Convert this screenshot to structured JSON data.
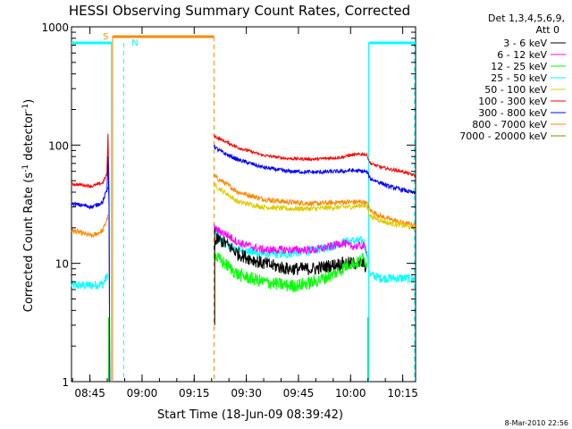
{
  "chart_data": {
    "type": "line",
    "title": "HESSI Observing Summary Count Rates, Corrected",
    "xlabel": "Start Time (18-Jun-09 08:39:42)",
    "ylabel_main": "Corrected Count Rate (s",
    "ylabel_sup1": "-1",
    "ylabel_mid": " detector",
    "ylabel_sup2": "-1",
    "ylabel_end": ")",
    "yscale": "log",
    "ylim": [
      1,
      1000
    ],
    "xlim_minutes": [
      0,
      99
    ],
    "x_ticks": [
      {
        "minutes": 5.3,
        "label": "08:45"
      },
      {
        "minutes": 20.3,
        "label": "09:00"
      },
      {
        "minutes": 35.3,
        "label": "09:15"
      },
      {
        "minutes": 50.3,
        "label": "09:30"
      },
      {
        "minutes": 65.3,
        "label": "09:45"
      },
      {
        "minutes": 80.3,
        "label": "10:00"
      },
      {
        "minutes": 95.3,
        "label": "10:15"
      }
    ],
    "y_ticks": [
      {
        "value": 1,
        "label": "1"
      },
      {
        "value": 10,
        "label": "10"
      },
      {
        "value": 100,
        "label": "100"
      },
      {
        "value": 1000,
        "label": "1000"
      }
    ],
    "legend_header": [
      "Det 1,3,4,5,6,9,",
      "Att 0"
    ],
    "legend_placement": "right",
    "series": [
      {
        "name": "3 - 6 keV",
        "color": "#000000",
        "x": [
          0,
          3,
          6,
          9,
          10.5,
          11,
          12,
          40,
          41,
          42,
          44,
          48,
          55,
          62,
          70,
          78,
          80,
          84,
          85,
          86,
          89,
          91,
          95,
          99
        ],
        "y": [
          null,
          null,
          null,
          null,
          null,
          null,
          null,
          null,
          14,
          16,
          15,
          12,
          10,
          9,
          9,
          10,
          10,
          10,
          9,
          null,
          null,
          null,
          null,
          null
        ]
      },
      {
        "name": "6 - 12 keV",
        "color": "#ff00ff",
        "x": [
          0,
          3,
          6,
          9,
          10.5,
          12,
          40,
          41,
          42,
          44,
          48,
          55,
          62,
          70,
          75,
          78,
          80,
          84,
          85,
          86,
          89,
          91,
          95,
          99
        ],
        "y": [
          null,
          null,
          null,
          null,
          null,
          null,
          null,
          20,
          19,
          18,
          15,
          13,
          13,
          13,
          14,
          15,
          14,
          14,
          13,
          null,
          null,
          null,
          null,
          null
        ]
      },
      {
        "name": "12 - 25 keV",
        "color": "#00ff00",
        "x": [
          0,
          3,
          6,
          9,
          10.5,
          12,
          40,
          41,
          42,
          44,
          48,
          55,
          62,
          65,
          70,
          75,
          78,
          80,
          82,
          84,
          85,
          86,
          89,
          91,
          95,
          99
        ],
        "y": [
          null,
          null,
          null,
          null,
          null,
          null,
          null,
          12,
          11,
          10,
          8,
          7,
          6.5,
          6.5,
          7,
          8,
          9,
          10,
          10,
          11,
          10,
          null,
          null,
          null,
          null,
          null
        ]
      },
      {
        "name": "25 - 50 keV",
        "color": "#00ffff",
        "x": [
          0,
          3,
          6,
          9,
          10.5,
          11,
          12,
          40,
          41,
          42,
          44,
          48,
          55,
          62,
          70,
          75,
          78,
          80,
          84,
          85,
          86,
          89,
          91,
          95,
          99
        ],
        "y": [
          6.5,
          6.5,
          6.5,
          6.7,
          8,
          null,
          null,
          null,
          19,
          17,
          15,
          13,
          12,
          12,
          13,
          14,
          15,
          15.5,
          15.5,
          12,
          8,
          7.5,
          7.5,
          7.5,
          7.3
        ]
      },
      {
        "name": "50 - 100 keV",
        "color": "#ddcc00",
        "x": [
          0,
          3,
          6,
          9,
          10.5,
          11,
          12,
          40,
          41,
          42,
          44,
          48,
          55,
          62,
          70,
          78,
          80,
          84,
          85,
          86,
          89,
          91,
          95,
          99
        ],
        "y": [
          null,
          null,
          null,
          null,
          null,
          null,
          null,
          null,
          46,
          44,
          40,
          33,
          30,
          29,
          29,
          30,
          30,
          31,
          30,
          25,
          23,
          22,
          21,
          20
        ]
      },
      {
        "name": "100 - 300 keV",
        "color": "#ff0000",
        "x": [
          0,
          3,
          6,
          9,
          10.5,
          11,
          12,
          40,
          41,
          42,
          44,
          48,
          55,
          62,
          70,
          78,
          80,
          84,
          85,
          86,
          89,
          91,
          95,
          99
        ],
        "y": [
          47,
          46,
          45,
          48,
          60,
          null,
          null,
          null,
          120,
          115,
          108,
          95,
          82,
          77,
          76,
          79,
          82,
          84,
          82,
          70,
          65,
          63,
          60,
          55
        ]
      },
      {
        "name": "300 - 800 keV",
        "color": "#0000ff",
        "x": [
          0,
          3,
          6,
          9,
          10.5,
          11,
          12,
          40,
          41,
          42,
          44,
          48,
          55,
          62,
          70,
          78,
          80,
          84,
          85,
          86,
          89,
          91,
          95,
          99
        ],
        "y": [
          32,
          31,
          30,
          33,
          45,
          null,
          null,
          null,
          98,
          92,
          85,
          75,
          65,
          60,
          59,
          60,
          61,
          60,
          59,
          52,
          48,
          45,
          42,
          39
        ]
      },
      {
        "name": "800 - 7000 keV",
        "color": "#ff8800",
        "x": [
          0,
          3,
          6,
          9,
          10.5,
          11,
          12,
          40,
          41,
          42,
          44,
          48,
          55,
          62,
          70,
          78,
          80,
          84,
          85,
          86,
          89,
          91,
          95,
          99
        ],
        "y": [
          19,
          18,
          17,
          19,
          25,
          null,
          null,
          null,
          55,
          52,
          48,
          40,
          35,
          33,
          32,
          33,
          33,
          33,
          32,
          28,
          25,
          24,
          22,
          21
        ]
      },
      {
        "name": "7000 - 20000 keV",
        "color": "#888800",
        "x": [
          0,
          9,
          10.5,
          11,
          12
        ],
        "y": [
          null,
          null,
          3.2,
          null,
          null
        ]
      }
    ],
    "attenuator_markers": [
      {
        "label": "S",
        "color": "#ff8800"
      },
      {
        "label": "N",
        "color": "#00ffff"
      }
    ]
  },
  "footer_date": "8-Mar-2010 22:56"
}
